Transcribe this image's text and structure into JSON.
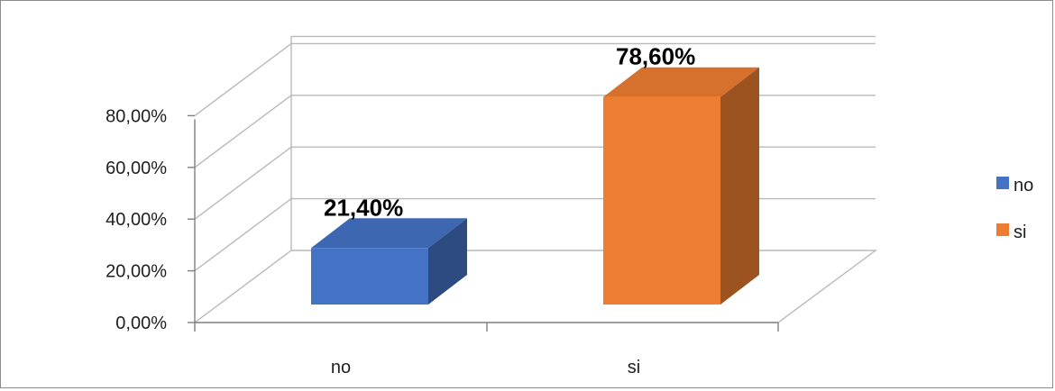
{
  "chart_data": {
    "type": "bar",
    "three_d": true,
    "categories": [
      "no",
      "si"
    ],
    "values": [
      21.4,
      78.6
    ],
    "data_labels": [
      "21,40%",
      "78,60%"
    ],
    "yticks": [
      "0,00%",
      "20,00%",
      "40,00%",
      "60,00%",
      "80,00%"
    ],
    "ylim": [
      0,
      80
    ],
    "grid": true,
    "legend": {
      "position": "right",
      "entries": [
        "no",
        "si"
      ]
    },
    "colors": {
      "no": "#4472c4",
      "si": "#ed7d31"
    },
    "title": "",
    "xlabel": "",
    "ylabel": ""
  }
}
